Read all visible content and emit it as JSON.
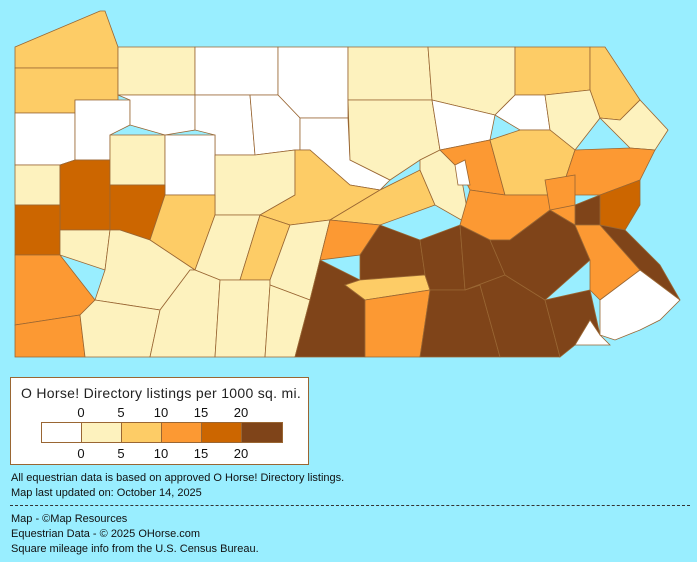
{
  "legend": {
    "title": "O Horse! Directory listings per 1000 sq. mi.",
    "ticks": [
      "0",
      "5",
      "10",
      "15",
      "20"
    ],
    "colors": [
      "#FFFFFF",
      "#FDF2BE",
      "#FDCC66",
      "#FC9933",
      "#CC6600",
      "#7F4419"
    ]
  },
  "map": {
    "border_color": "#996633",
    "county_tiers": [
      2,
      2,
      1,
      0,
      0,
      1,
      1,
      2,
      2,
      0,
      0,
      0,
      0,
      0,
      0,
      1,
      0,
      0,
      1,
      1,
      1,
      4,
      1,
      0,
      1,
      2,
      2,
      1,
      3,
      2,
      3,
      4,
      5,
      3,
      3,
      4,
      1,
      3,
      3,
      4,
      2,
      1,
      1,
      1,
      1,
      2,
      1,
      1,
      1,
      3,
      5,
      5,
      2,
      3,
      5,
      5,
      5,
      5,
      5,
      5,
      3,
      5,
      0
    ]
  },
  "notes": {
    "line1": "All equestrian data is based on approved O Horse! Directory listings.",
    "line2": "Map last updated on: October 14, 2025"
  },
  "credits": {
    "map": "Map - ©Map Resources",
    "data": "Equestrian Data - © 2025 OHorse.com",
    "census": "Square mileage info from the U.S. Census Bureau."
  }
}
